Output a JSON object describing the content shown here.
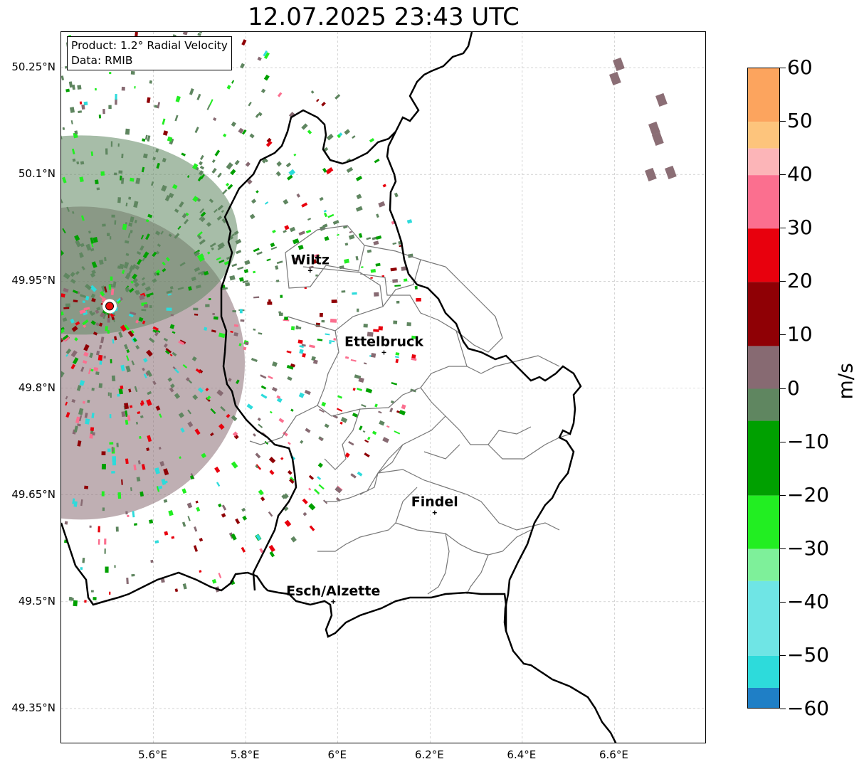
{
  "title": "12.07.2025 23:43 UTC",
  "info": {
    "product": "Product: 1.2° Radial Velocity",
    "source": "Data: RMIB"
  },
  "y_labels": [
    "50.25°N",
    "50.1°N",
    "49.95°N",
    "49.8°N",
    "49.65°N",
    "49.5°N",
    "49.35°N"
  ],
  "x_labels": [
    "5.6°E",
    "5.8°E",
    "6°E",
    "6.2°E",
    "6.4°E",
    "6.6°E"
  ],
  "cities": [
    {
      "name": "Wiltz",
      "lon": 5.94,
      "lat": 49.965
    },
    {
      "name": "Ettelbruck",
      "lon": 6.1,
      "lat": 49.85
    },
    {
      "name": "Findel",
      "lon": 6.21,
      "lat": 49.625
    },
    {
      "name": "Esch/Alzette",
      "lon": 5.99,
      "lat": 49.5
    }
  ],
  "radar_site": {
    "lon": 5.505,
    "lat": 49.915,
    "color": "#ee1111"
  },
  "colorbar": {
    "unit": "m/s",
    "min": -60,
    "max": 60,
    "tick_labels": [
      "60",
      "50",
      "40",
      "30",
      "20",
      "10",
      "0",
      "−10",
      "−20",
      "−30",
      "−40",
      "−50",
      "−60"
    ],
    "stops": [
      {
        "from": 50,
        "to": 60,
        "color": "#fca45e"
      },
      {
        "from": 45,
        "to": 50,
        "color": "#fdc47c"
      },
      {
        "from": 40,
        "to": 45,
        "color": "#fcb5b8"
      },
      {
        "from": 30,
        "to": 40,
        "color": "#fb6f8f"
      },
      {
        "from": 20,
        "to": 30,
        "color": "#e8000d"
      },
      {
        "from": 8,
        "to": 20,
        "color": "#8f0005"
      },
      {
        "from": 0,
        "to": 8,
        "color": "#876a72"
      },
      {
        "from": -6,
        "to": 0,
        "color": "#5f8660"
      },
      {
        "from": -20,
        "to": -6,
        "color": "#00a000"
      },
      {
        "from": -30,
        "to": -20,
        "color": "#22ee22"
      },
      {
        "from": -36,
        "to": -30,
        "color": "#7ef09a"
      },
      {
        "from": -50,
        "to": -36,
        "color": "#6fe5e5"
      },
      {
        "from": -56,
        "to": -50,
        "color": "#2ddbdb"
      },
      {
        "from": -60,
        "to": -56,
        "color": "#1f7fc6"
      }
    ]
  },
  "colors": {
    "border": "#000000",
    "canton_lines": "#777777",
    "grid": "#bbbbbb",
    "echo_west": "#8b6e75",
    "echo_north": "#5f8660"
  },
  "extent": {
    "lon_min": 5.4,
    "lon_max": 6.8,
    "lat_min": 49.3,
    "lat_max": 50.3
  }
}
